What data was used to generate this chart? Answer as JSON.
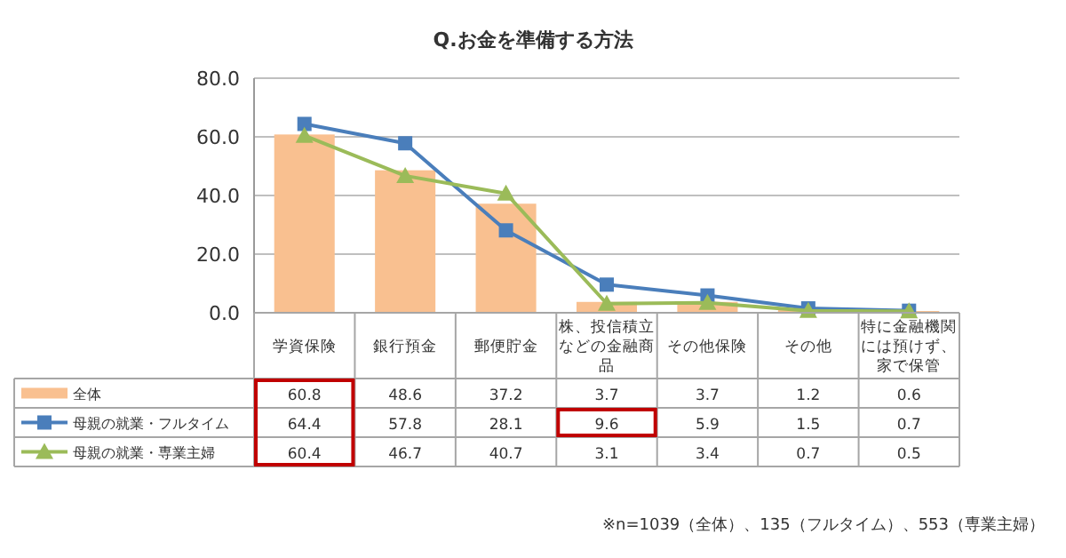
{
  "chart_data": {
    "type": "bar",
    "title": "Q.お金を準備する方法",
    "categories": [
      "学資保険",
      "銀行預金",
      "郵便貯金",
      "株、投信積立などの金融商品",
      "その他保険",
      "その他",
      "特に金融機関には預けず、家で保管"
    ],
    "series": [
      {
        "name": "全体",
        "color": "#f9c090",
        "values": [
          60.8,
          48.6,
          37.2,
          3.7,
          3.7,
          1.2,
          0.6
        ]
      },
      {
        "name": "母親の就業・フルタイム",
        "type": "line",
        "marker": "square",
        "color": "#4a7ebb",
        "values": [
          64.4,
          57.8,
          28.1,
          9.6,
          5.9,
          1.5,
          0.7
        ]
      },
      {
        "name": "母親の就業・専業主婦",
        "type": "line",
        "marker": "triangle",
        "color": "#9bbb59",
        "values": [
          60.4,
          46.7,
          40.7,
          3.1,
          3.4,
          0.7,
          0.5
        ]
      }
    ],
    "ylim": [
      0,
      80
    ],
    "yticks": [
      {
        "value": 0,
        "label": "0.0"
      },
      {
        "value": 20,
        "label": "20.0"
      },
      {
        "value": 40,
        "label": "40.0"
      },
      {
        "value": 60,
        "label": "60.0"
      },
      {
        "value": 80,
        "label": "80.0"
      }
    ],
    "grid": "y",
    "data_labels": true,
    "legend": "bottom left",
    "annotations": [
      "※n=1039（全体）、135（フルタイム）、553（専業主婦）"
    ]
  }
}
